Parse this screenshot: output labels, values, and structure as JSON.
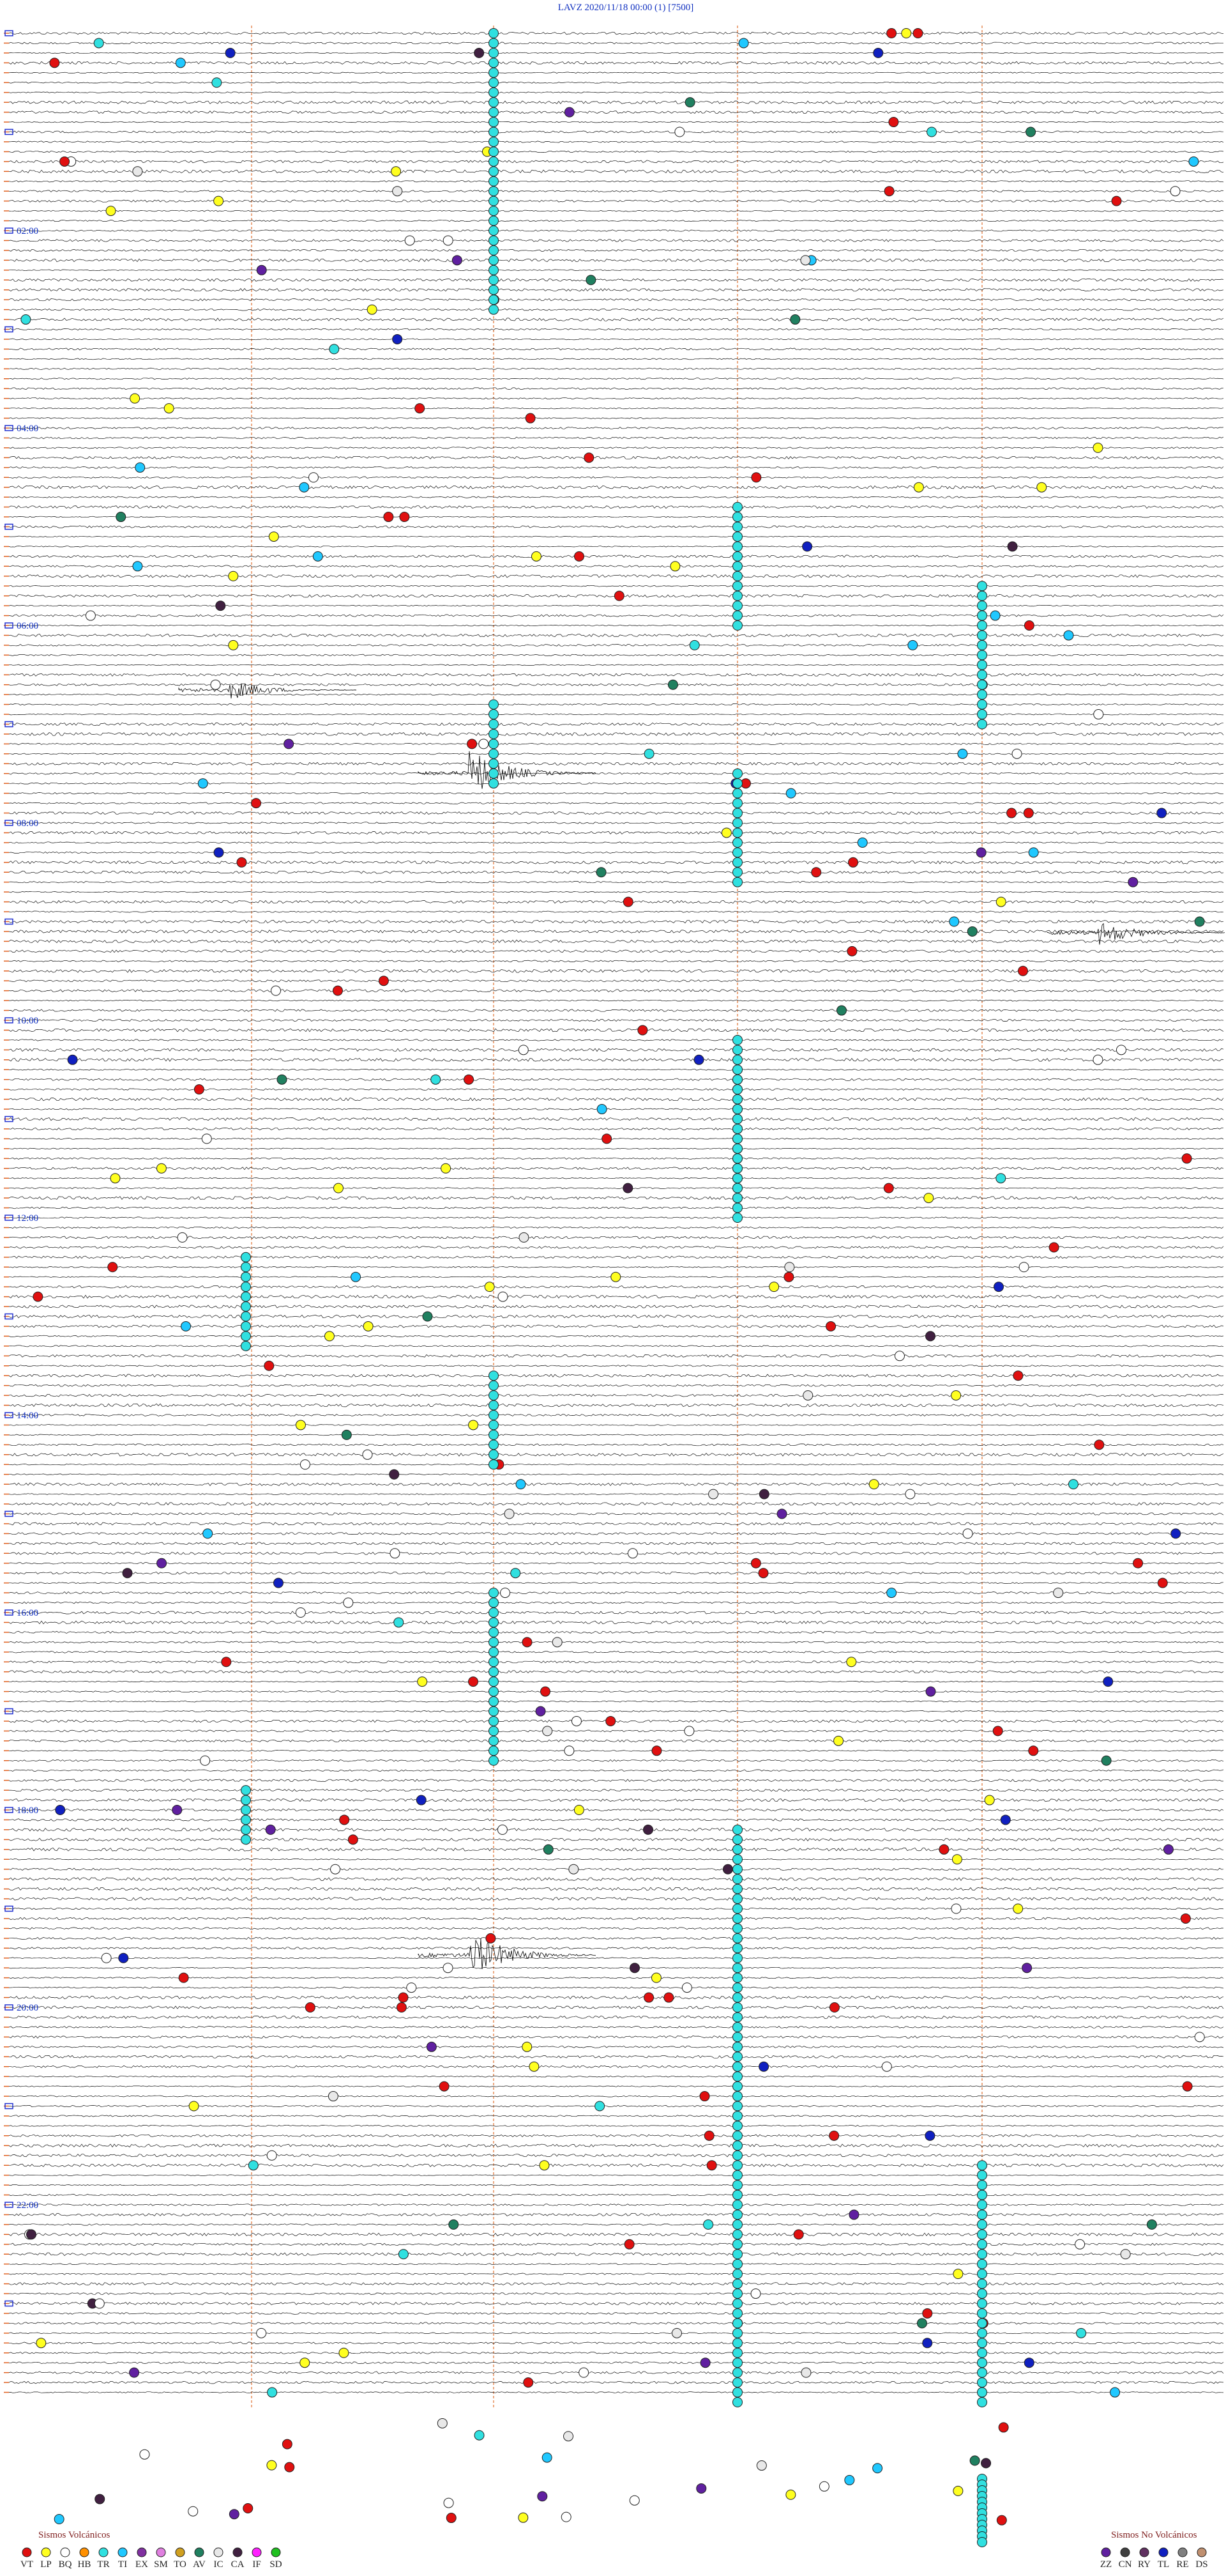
{
  "header": {
    "title": "LAVZ     2020/11/18 00:00     (1)     [7500]"
  },
  "hour_labels": [
    "02:00",
    "04:00",
    "06:00",
    "08:00",
    "10:00",
    "12:00",
    "14:00",
    "16:00",
    "18:00",
    "20:00",
    "22:00"
  ],
  "legend": {
    "volcanic": {
      "title": "Sismos Volcánicos",
      "items": [
        {
          "code": "VT",
          "color": "#e01010"
        },
        {
          "code": "LP",
          "color": "#ffff20"
        },
        {
          "code": "BQ",
          "color": "#ffffff"
        },
        {
          "code": "HB",
          "color": "#ff9000"
        },
        {
          "code": "TR",
          "color": "#30e0e0"
        },
        {
          "code": "TI",
          "color": "#20c8ff"
        },
        {
          "code": "EX",
          "color": "#8030a0"
        },
        {
          "code": "SM",
          "color": "#e080e0"
        },
        {
          "code": "TO",
          "color": "#d0a020"
        },
        {
          "code": "AV",
          "color": "#208060"
        },
        {
          "code": "IC",
          "color": "#e8e8e8"
        },
        {
          "code": "CA",
          "color": "#402040"
        },
        {
          "code": "IF",
          "color": "#ff20ff"
        },
        {
          "code": "SD",
          "color": "#20c020"
        }
      ]
    },
    "non_volcanic": {
      "title": "Sismos No Volcánicos",
      "items": [
        {
          "code": "ZZ",
          "color": "#6020a0"
        },
        {
          "code": "CN",
          "color": "#404040"
        },
        {
          "code": "RY",
          "color": "#603060"
        },
        {
          "code": "TL",
          "color": "#1020c0"
        },
        {
          "code": "RE",
          "color": "#808080"
        },
        {
          "code": "DS",
          "color": "#c09070"
        }
      ]
    }
  }
}
